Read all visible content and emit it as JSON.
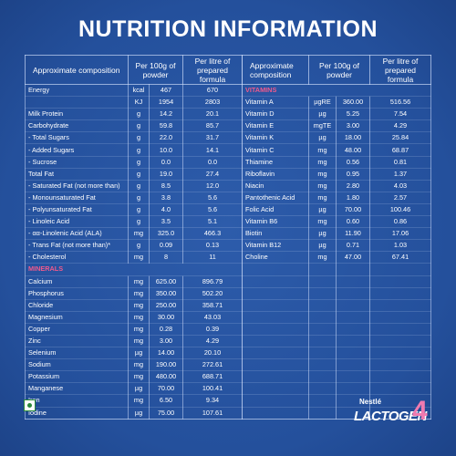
{
  "title": "NUTRITION INFORMATION",
  "left": {
    "header": [
      "Approximate composition",
      "Per 100g of powder",
      "Per litre of prepared formula"
    ],
    "rows": [
      [
        "Energy",
        "kcal",
        "467",
        "670"
      ],
      [
        null,
        "KJ",
        "1954",
        "2803"
      ],
      [
        "Milk Protein",
        "g",
        "14.2",
        "20.1"
      ],
      [
        "Carbohydrate",
        "g",
        "59.8",
        "85.7"
      ],
      [
        "- Total Sugars",
        "g",
        "22.0",
        "31.7"
      ],
      [
        "- Added Sugars",
        "g",
        "10.0",
        "14.1"
      ],
      [
        "- Sucrose",
        "g",
        "0.0",
        "0.0"
      ],
      [
        "Total Fat",
        "g",
        "19.0",
        "27.4"
      ],
      [
        "- Saturated Fat (not more than)",
        "g",
        "8.5",
        "12.0"
      ],
      [
        "- Monounsaturated Fat",
        "g",
        "3.8",
        "5.6"
      ],
      [
        "- Polyunsaturated Fat",
        "g",
        "4.0",
        "5.6"
      ],
      [
        "- Linoleic Acid",
        "g",
        "3.5",
        "5.1"
      ],
      [
        "- αα-Linolenic Acid (ALA)",
        "mg",
        "325.0",
        "466.3"
      ],
      [
        "- Trans Fat (not more than)*",
        "g",
        "0.09",
        "0.13"
      ],
      [
        "- Cholesterol",
        "mg",
        "8",
        "11"
      ],
      [
        "MINERALS"
      ],
      [
        "Calcium",
        "mg",
        "625.00",
        "896.79"
      ],
      [
        "Phosphorus",
        "mg",
        "350.00",
        "502.20"
      ],
      [
        "Chloride",
        "mg",
        "250.00",
        "358.71"
      ],
      [
        "Magnesium",
        "mg",
        "30.00",
        "43.03"
      ],
      [
        "Copper",
        "mg",
        "0.28",
        "0.39"
      ],
      [
        "Zinc",
        "mg",
        "3.00",
        "4.29"
      ],
      [
        "Selenium",
        "µg",
        "14.00",
        "20.10"
      ],
      [
        "Sodium",
        "mg",
        "190.00",
        "272.61"
      ],
      [
        "Potassium",
        "mg",
        "480.00",
        "688.71"
      ],
      [
        "Manganese",
        "µg",
        "70.00",
        "100.41"
      ],
      [
        "Iron",
        "mg",
        "6.50",
        "9.34"
      ],
      [
        "Iodine",
        "µg",
        "75.00",
        "107.61"
      ]
    ]
  },
  "right": {
    "header": [
      "Approximate composition",
      "Per 100g of powder",
      "Per litre of prepared formula"
    ],
    "rows": [
      [
        "VITAMINS"
      ],
      [
        "Vitamin A",
        "µgRE",
        "360.00",
        "516.56"
      ],
      [
        "Vitamin D",
        "µg",
        "5.25",
        "7.54"
      ],
      [
        "Vitamin E",
        "mgTE",
        "3.00",
        "4.29"
      ],
      [
        "Vitamin K",
        "µg",
        "18.00",
        "25.84"
      ],
      [
        "Vitamin C",
        "mg",
        "48.00",
        "68.87"
      ],
      [
        "Thiamine",
        "mg",
        "0.56",
        "0.81"
      ],
      [
        "Riboflavin",
        "mg",
        "0.95",
        "1.37"
      ],
      [
        "Niacin",
        "mg",
        "2.80",
        "4.03"
      ],
      [
        "Pantothenic Acid",
        "mg",
        "1.80",
        "2.57"
      ],
      [
        "Folic Acid",
        "µg",
        "70.00",
        "100.46"
      ],
      [
        "Vitamin B6",
        "mg",
        "0.60",
        "0.86"
      ],
      [
        "Biotin",
        "µg",
        "11.90",
        "17.06"
      ],
      [
        "Vitamin B12",
        "µg",
        "0.71",
        "1.03"
      ],
      [
        "Choline",
        "mg",
        "47.00",
        "67.41"
      ]
    ]
  },
  "brand": {
    "maker": "Nestlé",
    "name": "LACTOGEN",
    "stage": "4"
  }
}
